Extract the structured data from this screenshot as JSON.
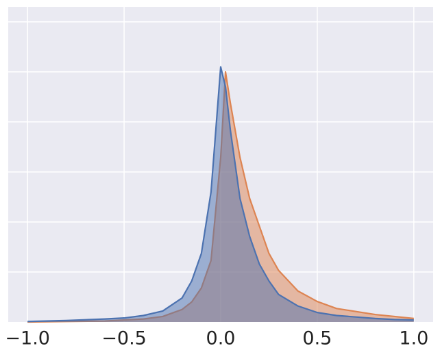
{
  "chart_data": {
    "type": "line",
    "x": [
      -1.0,
      -0.8,
      -0.6,
      -0.5,
      -0.4,
      -0.3,
      -0.2,
      -0.15,
      -0.1,
      -0.05,
      0,
      0.025,
      0.05,
      0.1,
      0.15,
      0.2,
      0.25,
      0.3,
      0.4,
      0.5,
      0.6,
      0.7,
      0.8,
      0.9,
      1.0
    ],
    "series": [
      {
        "color": "#dd8452",
        "values": [
          0,
          0.01,
          0.02,
          0.04,
          0.06,
          0.11,
          0.25,
          0.4,
          0.68,
          1.23,
          3.29,
          5.0,
          4.38,
          3.29,
          2.47,
          1.92,
          1.37,
          1.03,
          0.62,
          0.41,
          0.27,
          0.21,
          0.15,
          0.11,
          0.07
        ]
      },
      {
        "color": "#4c72b0",
        "values": [
          0.01,
          0.03,
          0.06,
          0.08,
          0.13,
          0.22,
          0.48,
          0.82,
          1.37,
          2.6,
          5.1,
          4.7,
          3.84,
          2.47,
          1.71,
          1.16,
          0.82,
          0.55,
          0.32,
          0.19,
          0.13,
          0.1,
          0.07,
          0.05,
          0.04
        ]
      }
    ],
    "fill": true,
    "xlim": [
      -1.1,
      1.1
    ],
    "xticks": [
      {
        "value": -1.0,
        "label": "−1.0"
      },
      {
        "value": -0.5,
        "label": "−0.5"
      },
      {
        "value": 0.0,
        "label": "0.0"
      },
      {
        "value": 0.5,
        "label": "0.5"
      },
      {
        "value": 1.0,
        "label": "1.0"
      }
    ],
    "ylim": [
      0,
      6.3
    ],
    "yticks": [
      1,
      2,
      3,
      4,
      5,
      6
    ],
    "grid": true
  }
}
